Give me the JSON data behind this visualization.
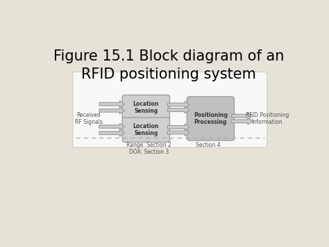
{
  "title_line1": "Figure 15.1 Block diagram of an",
  "title_line2": "RFID positioning system",
  "title_fontsize": 15,
  "bg_color": "#e6e2d8",
  "diagram_bg": "#f8f8f6",
  "diagram_edge": "#cccccc",
  "box_fill_ls": "#d0d0d0",
  "box_fill_pp": "#c0c0c0",
  "box_edge": "#999999",
  "loc_sensing_label": "Location\nSensing",
  "pos_processing_label": "Positioning\nProcessing",
  "received_label": "Received\nRF Signals",
  "output_label": "RFID Positioning\nInformation",
  "range_label": "Range: Section 2\nDOA: Section 3",
  "section4_label": "Section 4",
  "text_color": "#333333",
  "label_color": "#555555",
  "arrow_fill": "#cccccc",
  "arrow_edge": "#999999",
  "dashed_color": "#aaaaaa"
}
